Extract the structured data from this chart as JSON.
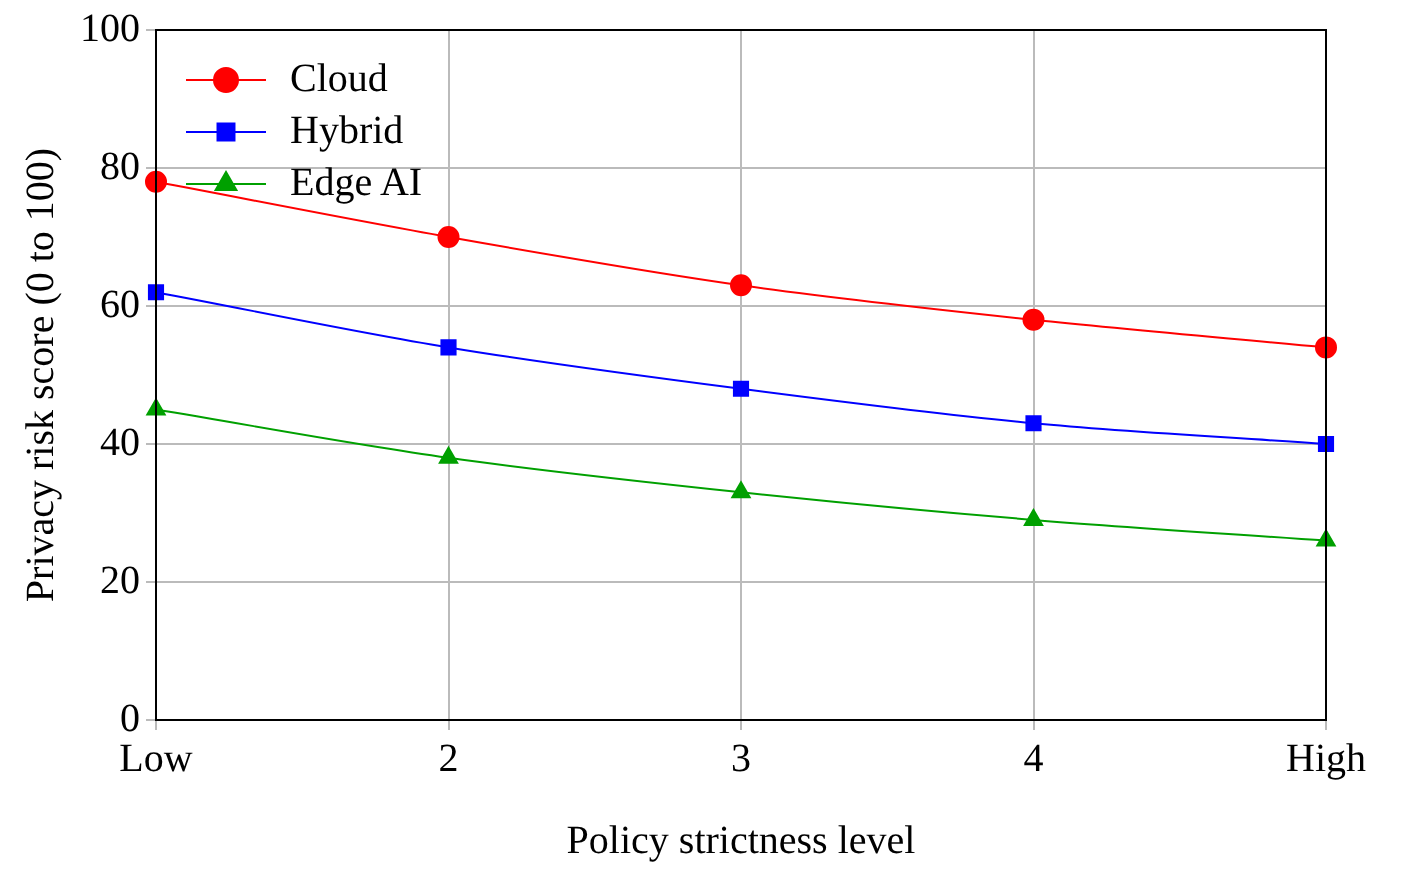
{
  "chart_data": {
    "type": "line",
    "xlabel": "Policy strictness level",
    "ylabel": "Privacy risk score (0 to 100)",
    "categories": [
      "Low",
      "2",
      "3",
      "4",
      "High"
    ],
    "ylim": [
      0,
      100
    ],
    "yticks": [
      0,
      20,
      40,
      60,
      80,
      100
    ],
    "grid": true,
    "legend": "top left",
    "series": [
      {
        "name": "Cloud",
        "color": "#ff0000",
        "marker": "circle",
        "values": [
          78,
          70,
          63,
          58,
          54
        ]
      },
      {
        "name": "Hybrid",
        "color": "#0000ff",
        "marker": "square",
        "values": [
          62,
          54,
          48,
          43,
          40
        ]
      },
      {
        "name": "Edge AI",
        "color": "#00a000",
        "marker": "triangle",
        "values": [
          45,
          38,
          33,
          29,
          26
        ]
      }
    ]
  }
}
